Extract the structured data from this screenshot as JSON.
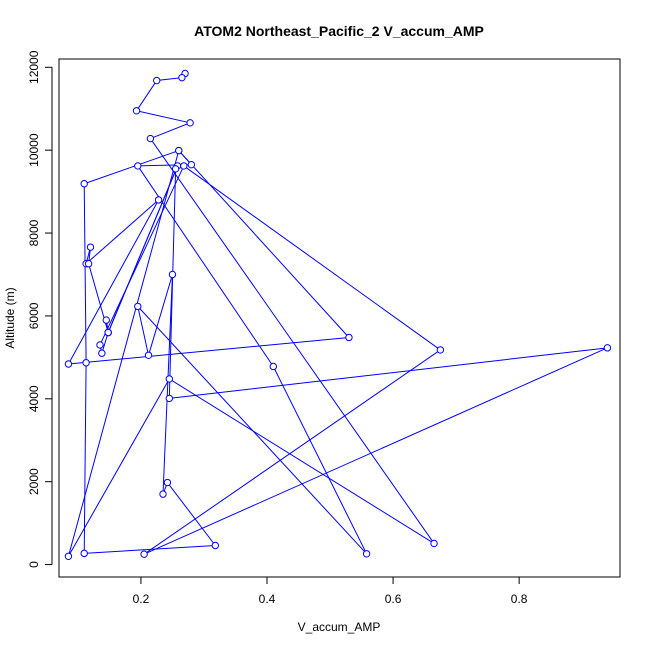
{
  "chart_data": {
    "type": "line",
    "title": "ATOM2 Northeast_Pacific_2 V_accum_AMP",
    "xlabel": "V_accum_AMP",
    "ylabel": "Altitude (m)",
    "xlim": [
      0.07,
      0.96
    ],
    "ylim": [
      -300,
      12200
    ],
    "x_ticks": [
      0.2,
      0.4,
      0.6,
      0.8
    ],
    "x_tick_labels": [
      "0.2",
      "0.4",
      "0.6",
      "0.8"
    ],
    "y_ticks": [
      0,
      2000,
      4000,
      6000,
      8000,
      10000,
      12000
    ],
    "y_tick_labels": [
      "0",
      "2000",
      "4000",
      "6000",
      "8000",
      "10000",
      "12000"
    ],
    "grid": false,
    "line_color": "#0000ff",
    "marker": "open-circle",
    "series": [
      {
        "x": [
          0.27,
          0.265,
          0.225,
          0.193,
          0.278,
          0.215,
          0.665,
          0.245,
          0.085,
          0.26,
          0.28,
          0.195,
          0.41,
          0.558,
          0.195,
          0.212,
          0.25,
          0.235,
          0.242,
          0.318,
          0.11,
          0.113,
          0.11,
          0.26,
          0.53,
          0.085,
          0.228,
          0.113,
          0.12,
          0.117,
          0.148,
          0.145,
          0.148,
          0.258,
          0.148,
          0.138,
          0.135,
          0.268,
          0.675,
          0.205,
          0.94,
          0.245,
          0.255
        ],
        "y": [
          11850,
          11750,
          11680,
          10950,
          10660,
          10280,
          510,
          4480,
          200,
          9990,
          9650,
          9620,
          4780,
          260,
          6230,
          5050,
          7000,
          1700,
          1980,
          460,
          270,
          4870,
          9190,
          9990,
          5480,
          4840,
          8800,
          7260,
          7660,
          7260,
          5600,
          5900,
          5600,
          9620,
          5600,
          5100,
          5300,
          9620,
          5180,
          250,
          5230,
          4010,
          9550
        ]
      }
    ]
  }
}
